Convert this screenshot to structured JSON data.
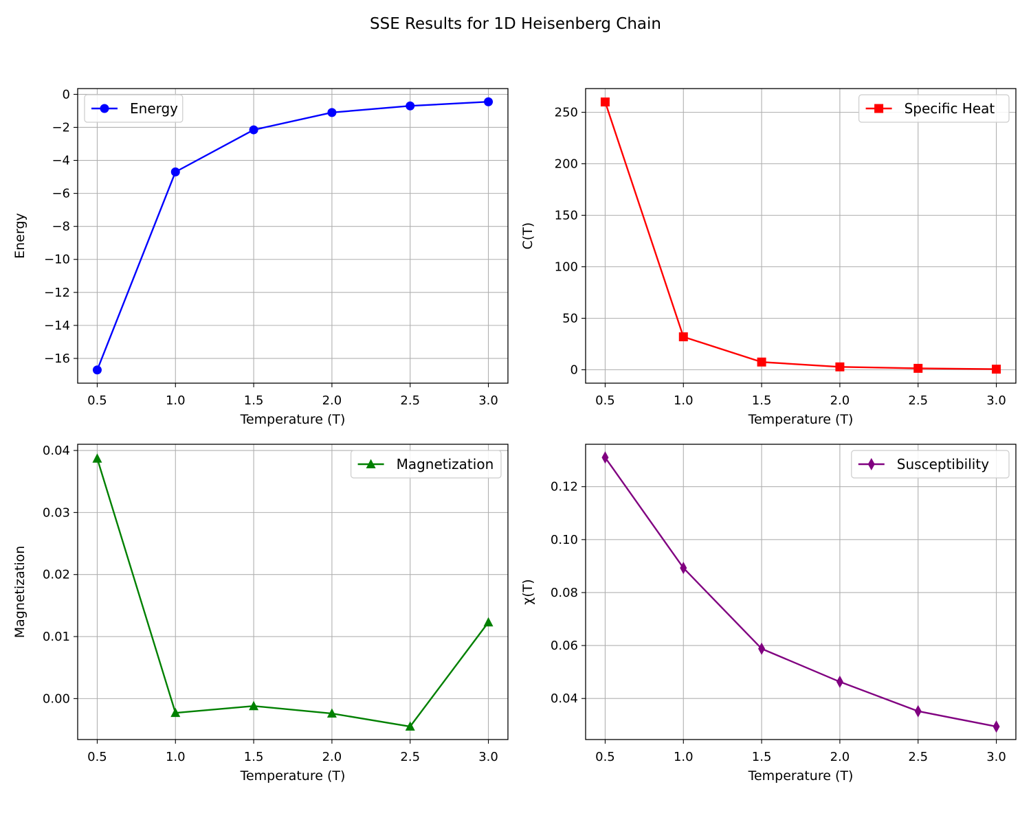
{
  "figure": {
    "title": "SSE Results for 1D Heisenberg Chain"
  },
  "chart_data": [
    {
      "type": "line",
      "title": "",
      "xlabel": "Temperature (T)",
      "ylabel": "Energy",
      "x": [
        0.5,
        1.0,
        1.5,
        2.0,
        2.5,
        3.0
      ],
      "xticks": [
        0.5,
        1.0,
        1.5,
        2.0,
        2.5,
        3.0
      ],
      "xlim": [
        0.375,
        3.125
      ],
      "yticks": [
        0,
        -2,
        -4,
        -6,
        -8,
        -10,
        -12,
        -14,
        -16
      ],
      "ylim": [
        -17.5,
        0.35
      ],
      "grid": true,
      "legend_position": "top-left",
      "series": [
        {
          "name": "Energy",
          "color": "#0000ff",
          "marker": "circle",
          "values": [
            -16.7,
            -4.7,
            -2.15,
            -1.1,
            -0.7,
            -0.45
          ]
        }
      ]
    },
    {
      "type": "line",
      "title": "",
      "xlabel": "Temperature (T)",
      "ylabel": "C(T)",
      "x": [
        0.5,
        1.0,
        1.5,
        2.0,
        2.5,
        3.0
      ],
      "xticks": [
        0.5,
        1.0,
        1.5,
        2.0,
        2.5,
        3.0
      ],
      "xlim": [
        0.375,
        3.125
      ],
      "yticks": [
        0,
        50,
        100,
        150,
        200,
        250
      ],
      "ylim": [
        -13,
        273
      ],
      "grid": true,
      "legend_position": "top-right",
      "series": [
        {
          "name": "Specific Heat",
          "color": "#ff0000",
          "marker": "square",
          "values": [
            260,
            32,
            7.5,
            2.8,
            1.4,
            0.6
          ]
        }
      ]
    },
    {
      "type": "line",
      "title": "",
      "xlabel": "Temperature (T)",
      "ylabel": "Magnetization",
      "x": [
        0.5,
        1.0,
        1.5,
        2.0,
        2.5,
        3.0
      ],
      "xticks": [
        0.5,
        1.0,
        1.5,
        2.0,
        2.5,
        3.0
      ],
      "xlim": [
        0.375,
        3.125
      ],
      "yticks": [
        0.0,
        0.01,
        0.02,
        0.03,
        0.04
      ],
      "ylim": [
        -0.0066,
        0.041
      ],
      "grid": true,
      "legend_position": "top-right",
      "series": [
        {
          "name": "Magnetization",
          "color": "#008000",
          "marker": "triangle",
          "values": [
            0.0387,
            -0.0023,
            -0.0012,
            -0.0024,
            -0.0045,
            0.0123
          ]
        }
      ]
    },
    {
      "type": "line",
      "title": "",
      "xlabel": "Temperature (T)",
      "ylabel": "χ(T)",
      "x": [
        0.5,
        1.0,
        1.5,
        2.0,
        2.5,
        3.0
      ],
      "xticks": [
        0.5,
        1.0,
        1.5,
        2.0,
        2.5,
        3.0
      ],
      "xlim": [
        0.375,
        3.125
      ],
      "yticks": [
        0.04,
        0.06,
        0.08,
        0.1,
        0.12
      ],
      "ylim": [
        0.0245,
        0.136
      ],
      "grid": true,
      "legend_position": "top-right",
      "series": [
        {
          "name": "Susceptibility",
          "color": "#800080",
          "marker": "diamond",
          "values": [
            0.131,
            0.0893,
            0.0588,
            0.0463,
            0.0352,
            0.0294
          ]
        }
      ]
    }
  ]
}
